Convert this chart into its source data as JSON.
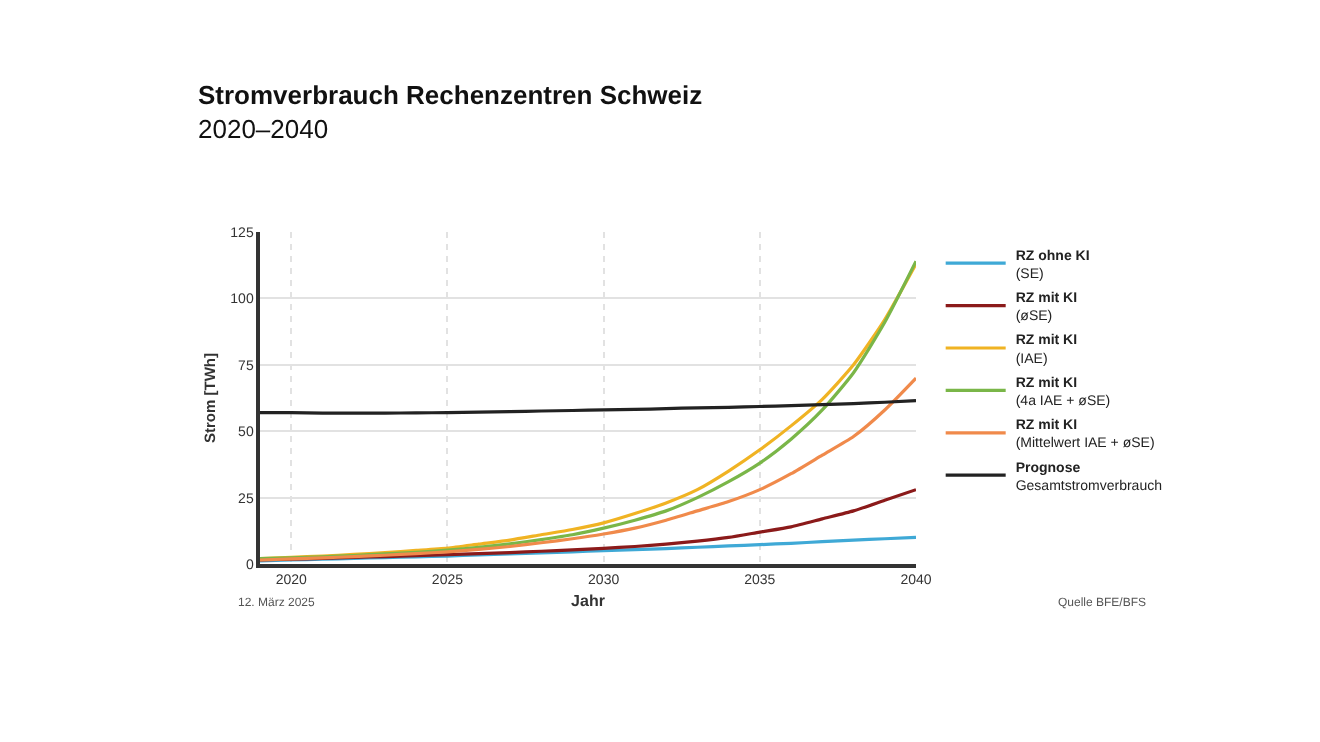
{
  "chart_data": {
    "type": "line",
    "title": "Stromverbrauch Rechenzentren Schweiz",
    "subtitle": "2020–2040",
    "xlabel": "Jahr",
    "ylabel": "Strom [TWh]",
    "x": [
      2019,
      2020,
      2021,
      2022,
      2023,
      2024,
      2025,
      2026,
      2027,
      2028,
      2029,
      2030,
      2031,
      2032,
      2033,
      2034,
      2035,
      2036,
      2037,
      2038,
      2039,
      2040
    ],
    "series": [
      {
        "name": "RZ ohne KI\n(SE)",
        "color": "#3fa9d6",
        "values": [
          1.2,
          1.5,
          1.8,
          2.1,
          2.4,
          2.7,
          3,
          3.4,
          3.8,
          4.2,
          4.6,
          5,
          5.4,
          5.8,
          6.3,
          6.8,
          7.3,
          7.8,
          8.4,
          9,
          9.5,
          10
        ]
      },
      {
        "name": "RZ mit KI\n(øSE)",
        "color": "#8b1a1a",
        "values": [
          1.5,
          1.8,
          2.1,
          2.5,
          2.8,
          3.1,
          3.5,
          3.9,
          4.3,
          4.8,
          5.3,
          5.9,
          6.6,
          7.5,
          8.6,
          10,
          12,
          14,
          17,
          20,
          24,
          28
        ]
      },
      {
        "name": "RZ mit KI\n(IAE)",
        "color": "#f0b323",
        "values": [
          2,
          2.5,
          3,
          3.6,
          4.3,
          5.1,
          6,
          7.5,
          9,
          11,
          13,
          15.5,
          19,
          23,
          28,
          35,
          43,
          52,
          62,
          75,
          92,
          113
        ]
      },
      {
        "name": "RZ mit KI\n(4a IAE + øSE)",
        "color": "#7ab648",
        "values": [
          2,
          2.3,
          2.7,
          3.2,
          3.8,
          4.4,
          5.2,
          6.3,
          7.6,
          9.2,
          11,
          13.5,
          16.5,
          20,
          25,
          31,
          38,
          47,
          58,
          72,
          91,
          114
        ]
      },
      {
        "name": "RZ mit KI\n(Mittelwert IAE + øSE)",
        "color": "#f08a4b",
        "values": [
          1.5,
          1.9,
          2.3,
          2.8,
          3.3,
          3.9,
          4.6,
          5.5,
          6.6,
          8,
          9.5,
          11.3,
          13.5,
          16.5,
          20,
          23.5,
          28,
          34,
          41,
          48,
          58,
          70
        ]
      },
      {
        "name": "Prognose\nGesamtstromverbrauch",
        "color": "#222222",
        "values": [
          57,
          57,
          56.8,
          56.8,
          56.8,
          56.9,
          57,
          57.2,
          57.4,
          57.6,
          57.8,
          58,
          58.2,
          58.5,
          58.8,
          59,
          59.3,
          59.6,
          60,
          60.4,
          60.9,
          61.5
        ]
      }
    ],
    "xlim": [
      2019,
      2040
    ],
    "xticks": [
      2020,
      2025,
      2030,
      2035,
      2040
    ],
    "ylim": [
      0,
      125
    ],
    "yticks": [
      0,
      25,
      50,
      75,
      100,
      125
    ],
    "grid": true,
    "legend": "right",
    "marker": "none",
    "line_style": "solid",
    "annotations": [
      "12. März 2025",
      "Quelle BFE/BFS"
    ]
  }
}
